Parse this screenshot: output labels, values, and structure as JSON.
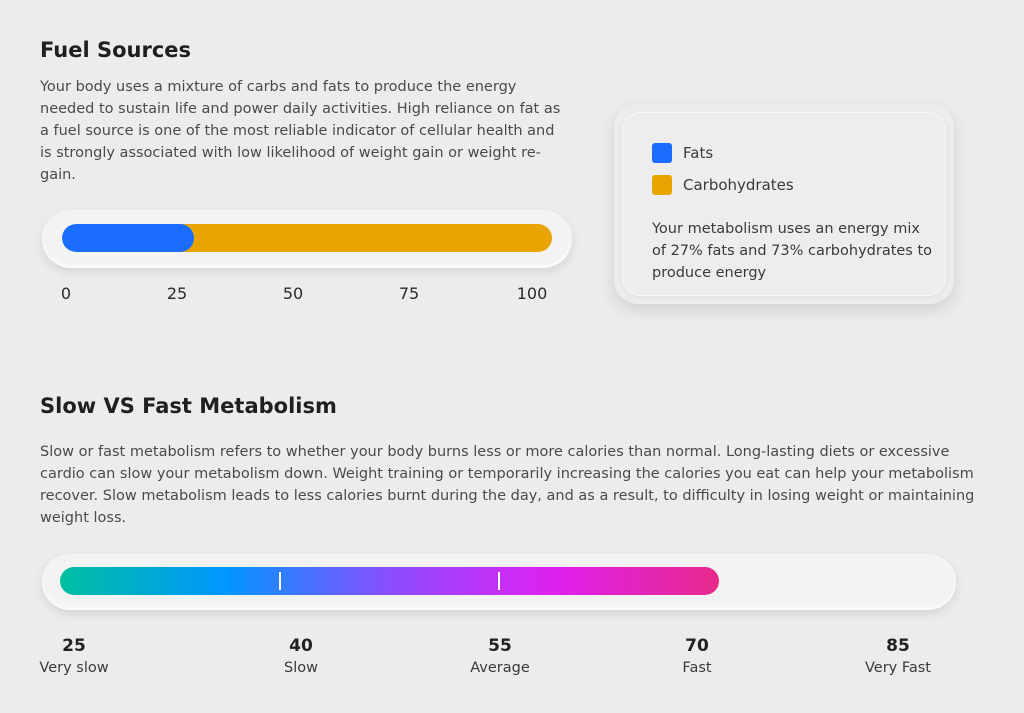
{
  "colors": {
    "fats": "#1a6dff",
    "carbs": "#e8a400",
    "gradient": [
      "#00bfa0",
      "#0097ff",
      "#8a4dff",
      "#e020f0",
      "#e72a8a"
    ]
  },
  "fuel": {
    "title": "Fuel Sources",
    "description": "Your body uses a mixture of carbs and fats to produce the energy needed to sustain life and power daily activities. High reliance on fat as a fuel source is one of the most reliable indicator of cellular health and is strongly associated with low likelihood of weight gain or weight re-gain.",
    "fats_percent": 27,
    "carbs_percent": 73,
    "ticks": [
      "0",
      "25",
      "50",
      "75",
      "100"
    ],
    "legend": {
      "fats_label": "Fats",
      "carbs_label": "Carbohydrates",
      "summary": "Your metabolism uses an energy mix of 27% fats and 73% carbohydrates to produce energy"
    }
  },
  "metabolism": {
    "title": "Slow VS Fast Metabolism",
    "description": "Slow or fast metabolism refers to whether your body burns less or more calories than normal. Long-lasting diets or excessive cardio can slow your metabolism down. Weight training or temporarily increasing the calories you eat can help your metabolism recover. Slow metabolism leads to less calories burnt during the day, and as a result, to difficulty in losing weight or maintaining weight loss.",
    "scale_min": 25,
    "scale_max": 85,
    "value": 70,
    "ticks": [
      {
        "num": "25",
        "label": "Very slow"
      },
      {
        "num": "40",
        "label": "Slow"
      },
      {
        "num": "55",
        "label": "Average"
      },
      {
        "num": "70",
        "label": "Fast"
      },
      {
        "num": "85",
        "label": "Very Fast"
      }
    ]
  }
}
